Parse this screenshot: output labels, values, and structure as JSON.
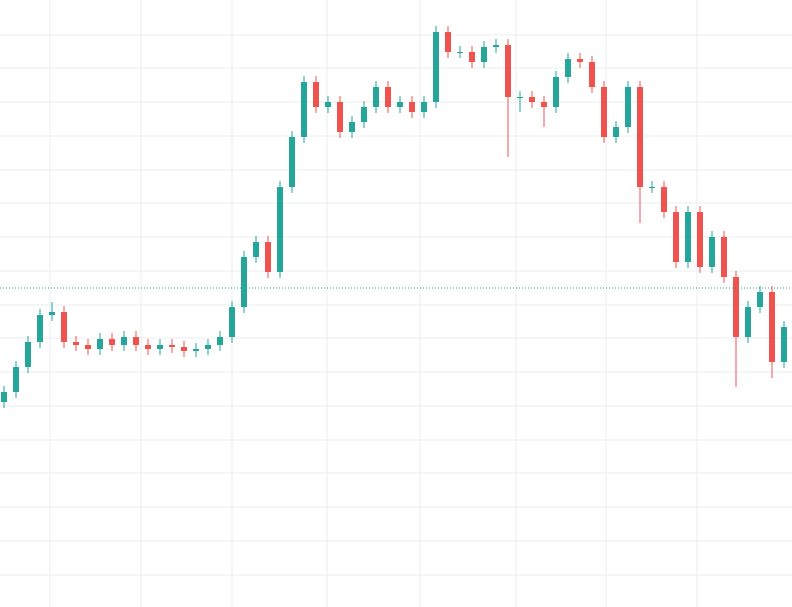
{
  "chart_data": {
    "type": "candlestick",
    "up_color": "#26a69a",
    "down_color": "#ef5350",
    "grid": true,
    "grid_color": "#e8eef1",
    "xlim": [
      0,
      792
    ],
    "xticks": [
      50,
      141,
      232,
      327,
      420,
      516,
      606,
      697
    ],
    "ylim": [
      0,
      607
    ],
    "yticks": [
      32,
      66,
      100,
      134,
      167,
      201,
      235,
      269,
      302,
      336,
      370,
      404,
      437,
      471,
      505,
      539,
      572
    ],
    "price_line": 319,
    "price_line_color": "#26a69a",
    "x": [
      4,
      16,
      28,
      40,
      52,
      64,
      76,
      88,
      100,
      112,
      124,
      136,
      148,
      160,
      172,
      184,
      196,
      208,
      220,
      232,
      244,
      256,
      268,
      280,
      292,
      304,
      316,
      328,
      340,
      352,
      364,
      376,
      388,
      400,
      412,
      424,
      436,
      448,
      460,
      472,
      484,
      496,
      508,
      520,
      532,
      544,
      556,
      568,
      580,
      592,
      604,
      616,
      628,
      640,
      652,
      664,
      676,
      688,
      700,
      712,
      724,
      736,
      748,
      760,
      772,
      784
    ],
    "open": [
      205,
      215,
      240,
      265,
      292,
      295,
      265,
      262,
      258,
      268,
      262,
      270,
      262,
      258,
      262,
      260,
      256,
      258,
      262,
      270,
      300,
      350,
      365,
      335,
      420,
      470,
      525,
      500,
      505,
      475,
      485,
      500,
      520,
      500,
      505,
      495,
      505,
      575,
      555,
      555,
      545,
      560,
      562,
      510,
      510,
      505,
      500,
      530,
      548,
      545,
      520,
      470,
      480,
      520,
      420,
      420,
      395,
      345,
      395,
      340,
      370,
      330,
      270,
      300,
      315,
      245
    ],
    "high": [
      221,
      246,
      271,
      298,
      305,
      301,
      271,
      268,
      274,
      274,
      276,
      276,
      268,
      268,
      268,
      266,
      264,
      268,
      276,
      306,
      356,
      371,
      371,
      426,
      476,
      531,
      531,
      511,
      511,
      491,
      506,
      526,
      526,
      511,
      511,
      511,
      581,
      581,
      561,
      561,
      566,
      568,
      568,
      516,
      516,
      511,
      536,
      554,
      554,
      551,
      526,
      486,
      526,
      526,
      426,
      426,
      401,
      401,
      401,
      376,
      376,
      336,
      306,
      321,
      321,
      286
    ],
    "low": [
      199,
      209,
      234,
      259,
      286,
      259,
      256,
      252,
      252,
      256,
      256,
      256,
      252,
      252,
      254,
      250,
      250,
      252,
      256,
      264,
      294,
      344,
      329,
      329,
      414,
      464,
      494,
      494,
      469,
      469,
      479,
      494,
      494,
      494,
      489,
      489,
      499,
      549,
      549,
      539,
      539,
      554,
      450,
      495,
      499,
      480,
      494,
      524,
      539,
      514,
      464,
      464,
      474,
      384,
      414,
      389,
      339,
      339,
      334,
      334,
      324,
      220,
      264,
      294,
      229,
      239
    ],
    "close": [
      215,
      240,
      265,
      292,
      295,
      265,
      262,
      258,
      268,
      262,
      270,
      262,
      258,
      262,
      260,
      256,
      258,
      262,
      270,
      300,
      350,
      365,
      335,
      420,
      470,
      525,
      500,
      505,
      475,
      485,
      500,
      520,
      500,
      505,
      495,
      505,
      575,
      555,
      555,
      545,
      560,
      562,
      510,
      510,
      505,
      500,
      530,
      548,
      545,
      520,
      470,
      480,
      520,
      420,
      420,
      395,
      345,
      395,
      340,
      370,
      330,
      270,
      300,
      315,
      245,
      280
    ]
  }
}
